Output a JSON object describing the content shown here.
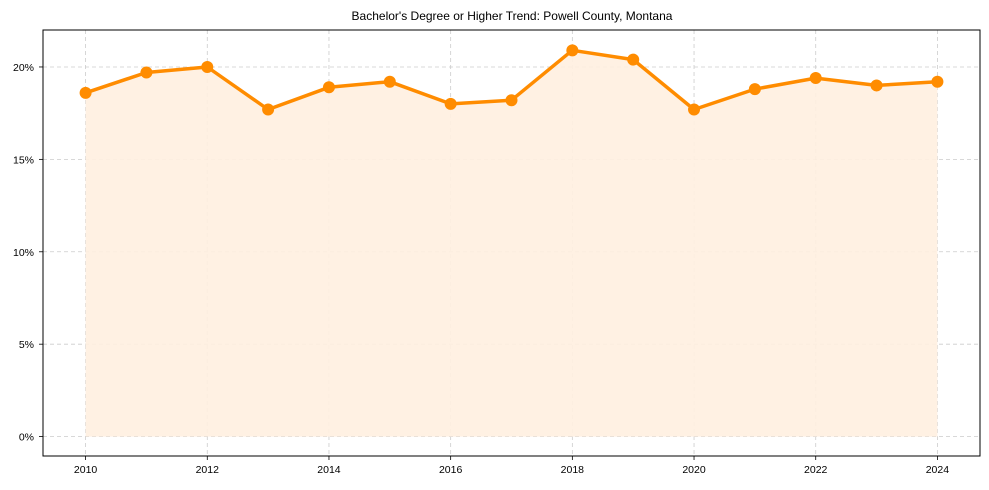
{
  "chart_data": {
    "type": "line",
    "title": "Bachelor's Degree or Higher Trend: Powell County, Montana",
    "xlabel": "",
    "ylabel": "",
    "x": [
      2010,
      2011,
      2012,
      2013,
      2014,
      2015,
      2016,
      2017,
      2018,
      2019,
      2020,
      2021,
      2022,
      2023,
      2024
    ],
    "series": [
      {
        "name": "Bachelor's Degree or Higher",
        "values": [
          18.6,
          19.7,
          20.0,
          17.7,
          18.9,
          19.2,
          18.0,
          18.2,
          20.9,
          20.4,
          17.7,
          18.8,
          19.4,
          19.0,
          19.2
        ],
        "color": "#ff8c00",
        "fill_color": "#fff0e0",
        "marker": "circle",
        "area_fill": true
      }
    ],
    "x_ticks": [
      2010,
      2012,
      2014,
      2016,
      2018,
      2020,
      2022,
      2024
    ],
    "y_ticks": [
      0,
      5,
      10,
      15,
      20
    ],
    "y_tick_labels": [
      "0%",
      "5%",
      "10%",
      "15%",
      "20%"
    ],
    "xlim": [
      2009.3,
      2024.7
    ],
    "ylim": [
      -1.05,
      22.0
    ],
    "grid": true,
    "grid_style": "dashed",
    "legend": null
  }
}
